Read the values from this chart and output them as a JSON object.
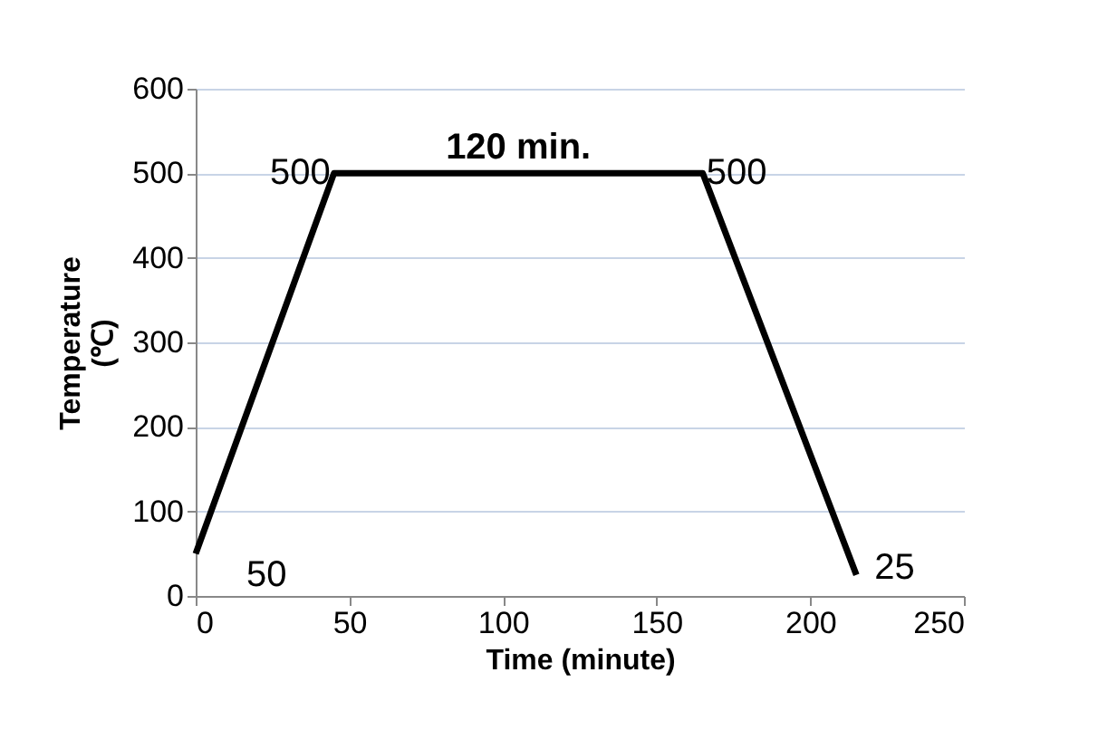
{
  "chart_data": {
    "type": "line",
    "xlabel": "Time (minute)",
    "ylabel": "Temperature\n(℃)",
    "x": [
      0,
      45,
      165,
      215
    ],
    "series": [
      {
        "color": "#000000",
        "values": [
          50,
          500,
          500,
          25
        ]
      }
    ],
    "data_labels": true,
    "annotations": [
      {
        "text": "120 min.",
        "x": 105,
        "y": 500
      }
    ],
    "xlim": [
      0,
      250
    ],
    "xticks": [
      0,
      50,
      100,
      150,
      200,
      250
    ],
    "ylim": [
      0,
      600
    ],
    "yticks": [
      0,
      100,
      200,
      300,
      400,
      500,
      600
    ],
    "grid": "y",
    "marker": "none",
    "line_style": "solid"
  }
}
